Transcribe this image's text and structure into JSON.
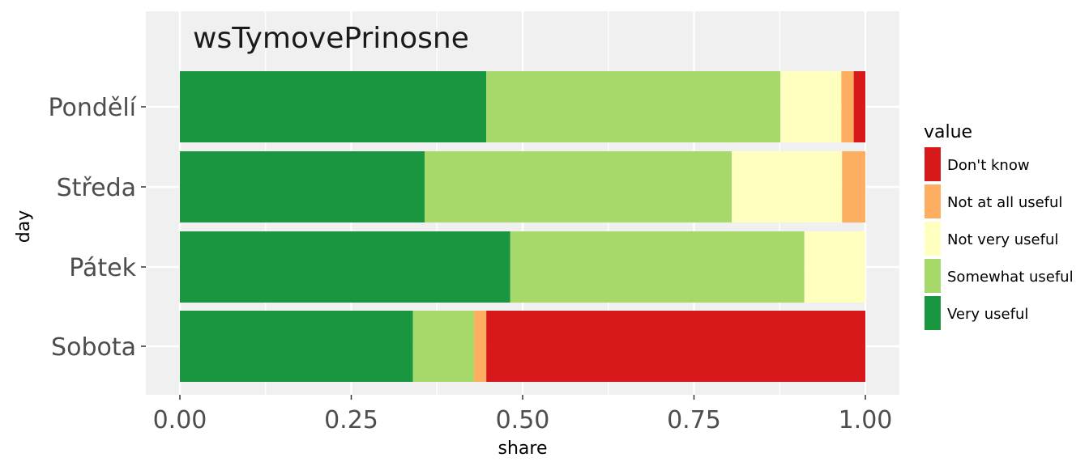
{
  "chart_data": {
    "type": "bar",
    "orientation": "horizontal",
    "stacked": true,
    "title": "wsTymovePrinosne",
    "xlabel": "share",
    "ylabel": "day",
    "xlim": [
      0,
      1
    ],
    "x_ticks": [
      "0.00",
      "0.25",
      "0.50",
      "0.75",
      "1.00"
    ],
    "categories": [
      "Pondělí",
      "Středa",
      "Pátek",
      "Sobota"
    ],
    "legend_title": "value",
    "legend_position": "right",
    "grid": true,
    "series": [
      {
        "name": "Very useful",
        "color": "#1a9641",
        "values": [
          0.447,
          0.357,
          0.482,
          0.34
        ]
      },
      {
        "name": "Somewhat useful",
        "color": "#a6d96a",
        "values": [
          0.429,
          0.448,
          0.429,
          0.089
        ]
      },
      {
        "name": "Not very useful",
        "color": "#ffffbf",
        "values": [
          0.089,
          0.161,
          0.089,
          0.0
        ]
      },
      {
        "name": "Not at all useful",
        "color": "#fdae61",
        "values": [
          0.018,
          0.034,
          0.0,
          0.018
        ]
      },
      {
        "name": "Don't know",
        "color": "#d7191c",
        "values": [
          0.017,
          0.0,
          0.0,
          0.553
        ]
      }
    ],
    "legend_order": [
      "Don't know",
      "Not at all useful",
      "Not very useful",
      "Somewhat useful",
      "Very useful"
    ]
  }
}
